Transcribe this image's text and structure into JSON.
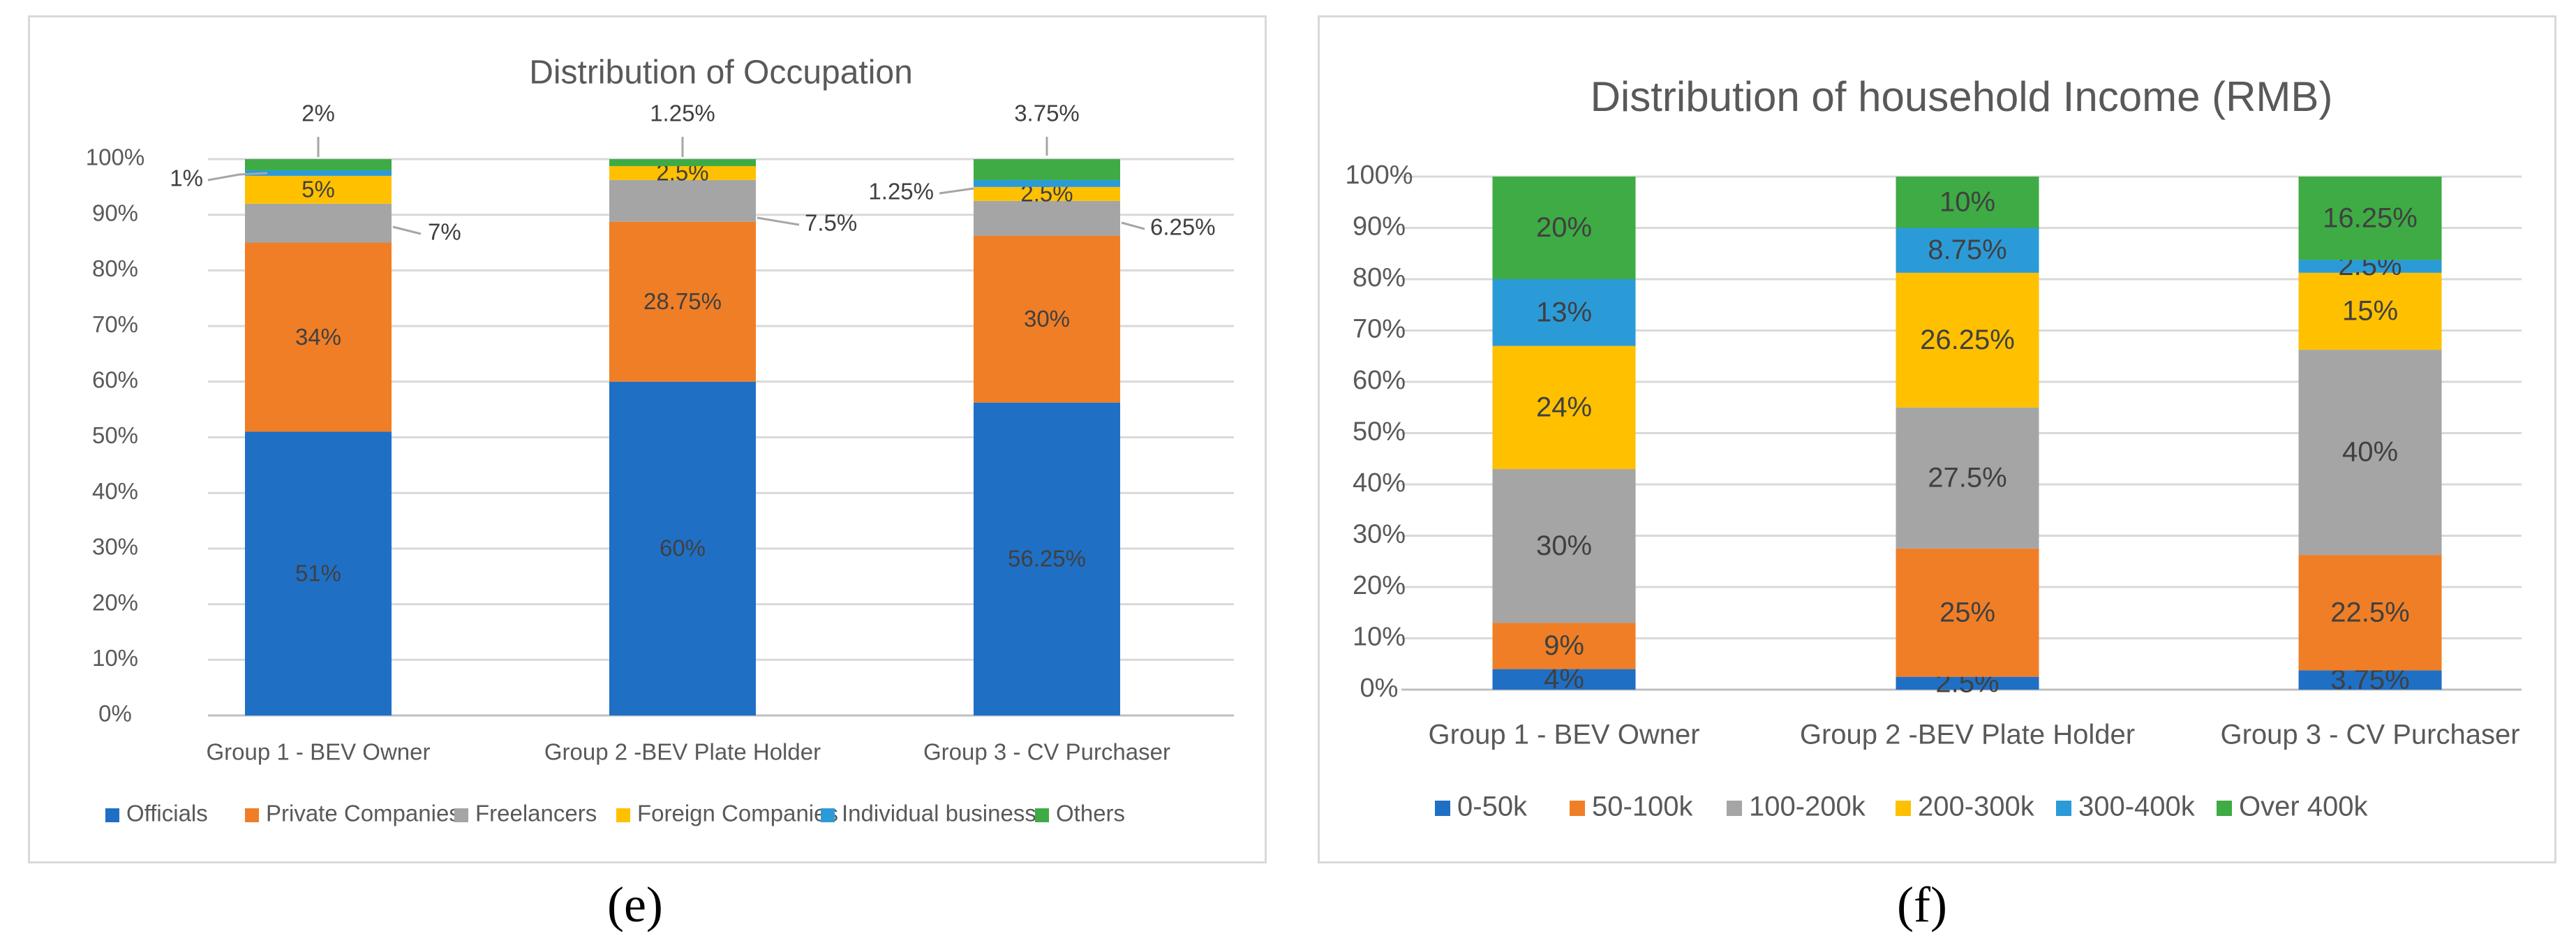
{
  "chart_data": [
    {
      "type": "bar",
      "stacked": true,
      "title": "Distribution of Occupation",
      "ylim": [
        0,
        100
      ],
      "yticks": [
        "0%",
        "10%",
        "20%",
        "30%",
        "40%",
        "50%",
        "60%",
        "70%",
        "80%",
        "90%",
        "100%"
      ],
      "categories": [
        "Group 1 - BEV Owner",
        "Group 2 -BEV Plate Holder",
        "Group 3 - CV Purchaser"
      ],
      "series": [
        {
          "name": "Officials",
          "color": "#1f6fc5",
          "values": [
            51,
            60,
            56.25
          ],
          "labels": [
            "51%",
            "60%",
            "56.25%"
          ]
        },
        {
          "name": "Private Companies",
          "color": "#f07e26",
          "values": [
            34,
            28.75,
            30
          ],
          "labels": [
            "34%",
            "28.75%",
            "30%"
          ]
        },
        {
          "name": "Freelancers",
          "color": "#a5a5a5",
          "values": [
            7,
            7.5,
            6.25
          ],
          "labels": [
            "7%",
            "7.5%",
            "6.25%"
          ]
        },
        {
          "name": "Foreign Companies",
          "color": "#ffc000",
          "values": [
            5,
            2.5,
            2.5
          ],
          "labels": [
            "5%",
            "2.5%",
            "2.5%"
          ]
        },
        {
          "name": "Individual business",
          "color": "#2b9bd8",
          "values": [
            1,
            0,
            1.25
          ],
          "labels": [
            "1%",
            "",
            "1.25%"
          ]
        },
        {
          "name": "Others",
          "color": "#3eab44",
          "values": [
            2,
            1.25,
            3.75
          ],
          "labels": [
            "2%",
            "1.25%",
            "3.75%"
          ]
        }
      ],
      "legend": "bottom",
      "caption": "(e)"
    },
    {
      "type": "bar",
      "stacked": true,
      "title": "Distribution of  household Income (RMB)",
      "ylim": [
        0,
        100
      ],
      "yticks": [
        "0%",
        "10%",
        "20%",
        "30%",
        "40%",
        "50%",
        "60%",
        "70%",
        "80%",
        "90%",
        "100%"
      ],
      "categories": [
        "Group 1 - BEV Owner",
        "Group 2 -BEV Plate Holder",
        "Group 3 - CV Purchaser"
      ],
      "series": [
        {
          "name": "0-50k",
          "color": "#1f6fc5",
          "values": [
            4,
            2.5,
            3.75
          ],
          "labels": [
            "4%",
            "2.5%",
            "3.75%"
          ]
        },
        {
          "name": "50-100k",
          "color": "#f07e26",
          "values": [
            9,
            25,
            22.5
          ],
          "labels": [
            "9%",
            "25%",
            "22.5%"
          ]
        },
        {
          "name": "100-200k",
          "color": "#a5a5a5",
          "values": [
            30,
            27.5,
            40
          ],
          "labels": [
            "30%",
            "27.5%",
            "40%"
          ]
        },
        {
          "name": "200-300k",
          "color": "#ffc000",
          "values": [
            24,
            26.25,
            15
          ],
          "labels": [
            "24%",
            "26.25%",
            "15%"
          ]
        },
        {
          "name": "300-400k",
          "color": "#2b9bd8",
          "values": [
            13,
            8.75,
            2.5
          ],
          "labels": [
            "13%",
            "8.75%",
            "2.5%"
          ]
        },
        {
          "name": "Over 400k",
          "color": "#3eab44",
          "values": [
            20,
            10,
            16.25
          ],
          "labels": [
            "20%",
            "10%",
            "16.25%"
          ]
        }
      ],
      "legend": "bottom",
      "caption": "(f)"
    }
  ]
}
